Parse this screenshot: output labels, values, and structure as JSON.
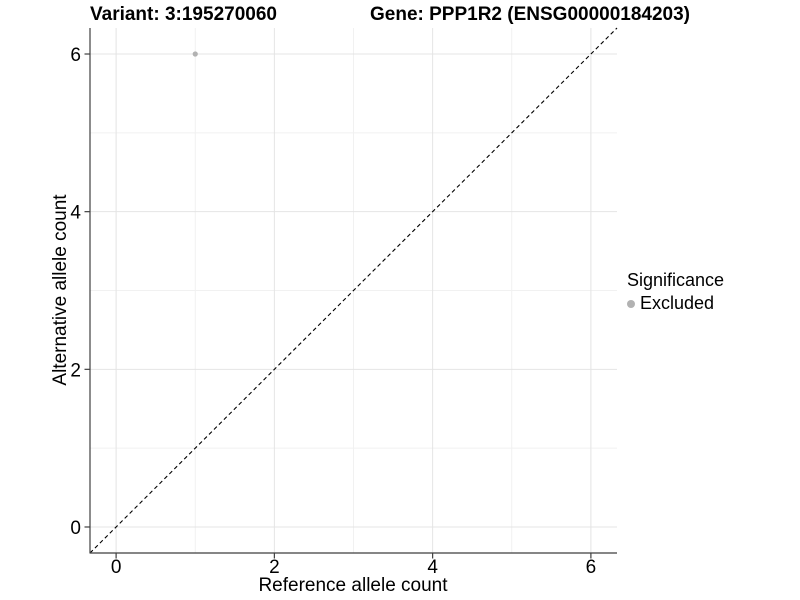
{
  "titles": {
    "variant": "Variant: 3:195270060",
    "gene": "Gene: PPP1R2 (ENSG00000184203)"
  },
  "chart_data": {
    "type": "scatter",
    "xlabel": "Reference allele count",
    "ylabel": "Alternative allele count",
    "xlim": [
      -0.33,
      6.33
    ],
    "ylim": [
      -0.33,
      6.33
    ],
    "x_breaks": [
      0,
      2,
      4,
      6
    ],
    "y_breaks": [
      0,
      2,
      4,
      6
    ],
    "x_minor_breaks": [
      1,
      3,
      5
    ],
    "y_minor_breaks": [
      1,
      3,
      5
    ],
    "grid": true,
    "aspect": "equal",
    "points": [
      {
        "x": 1,
        "y": 6,
        "series": "Excluded"
      }
    ],
    "reference_line": {
      "kind": "abline",
      "slope": 1,
      "intercept": 0,
      "style": "dashed",
      "color": "#000000"
    },
    "legend": {
      "title": "Significance",
      "position": "right",
      "entries": [
        {
          "label": "Excluded",
          "color": "#b2b2b2",
          "marker": "circle"
        }
      ]
    }
  },
  "colors": {
    "point": "#b2b2b2",
    "grid_major": "#e4e4e4",
    "grid_minor": "#f1f1f1",
    "axis_line": "#3f3f3f",
    "tick": "#3f3f3f",
    "text": "#000000",
    "background": "#ffffff"
  }
}
